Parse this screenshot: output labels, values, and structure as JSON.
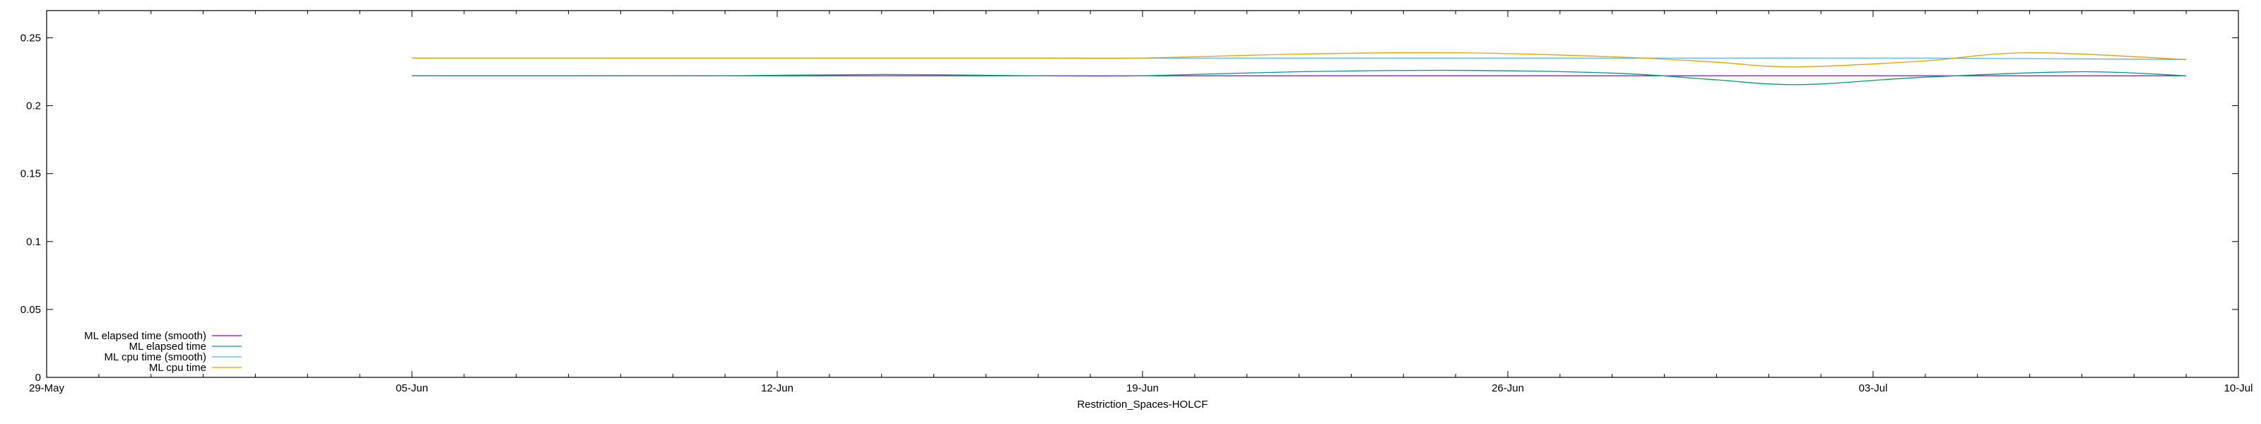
{
  "chart_data": {
    "type": "line",
    "title": "",
    "xlabel": "Restriction_Spaces-HOLCF",
    "ylabel": "",
    "xlim": [
      "2017-05-29",
      "2017-07-10"
    ],
    "ylim": [
      0,
      0.27
    ],
    "grid": false,
    "legend_position": "bottom-left",
    "x_ticks": [
      {
        "date": "2017-05-29",
        "label": "29-May"
      },
      {
        "date": "2017-06-05",
        "label": "05-Jun"
      },
      {
        "date": "2017-06-12",
        "label": "12-Jun"
      },
      {
        "date": "2017-06-19",
        "label": "19-Jun"
      },
      {
        "date": "2017-06-26",
        "label": "26-Jun"
      },
      {
        "date": "2017-07-03",
        "label": "03-Jul"
      },
      {
        "date": "2017-07-10",
        "label": "10-Jul"
      }
    ],
    "y_ticks": [
      {
        "value": 0,
        "label": "0"
      },
      {
        "value": 0.05,
        "label": "0.05"
      },
      {
        "value": 0.1,
        "label": "0.1"
      },
      {
        "value": 0.15,
        "label": "0.15"
      },
      {
        "value": 0.2,
        "label": "0.2"
      },
      {
        "value": 0.25,
        "label": "0.25"
      }
    ],
    "series": [
      {
        "name": "ML elapsed time (smooth)",
        "color": "#9400d3",
        "points": [
          [
            "2017-06-05",
            0.222
          ],
          [
            "2017-06-10",
            0.222
          ],
          [
            "2017-06-15",
            0.222
          ],
          [
            "2017-06-20",
            0.222
          ],
          [
            "2017-06-25",
            0.222
          ],
          [
            "2017-06-30",
            0.222
          ],
          [
            "2017-07-04",
            0.222
          ],
          [
            "2017-07-09",
            0.222
          ]
        ]
      },
      {
        "name": "ML elapsed time",
        "color": "#009e73",
        "points": [
          [
            "2017-06-05",
            0.222
          ],
          [
            "2017-06-08",
            0.222
          ],
          [
            "2017-06-11",
            0.222
          ],
          [
            "2017-06-14",
            0.223
          ],
          [
            "2017-06-17",
            0.222
          ],
          [
            "2017-06-19",
            0.222
          ],
          [
            "2017-06-22",
            0.225
          ],
          [
            "2017-06-25",
            0.226
          ],
          [
            "2017-06-28",
            0.224
          ],
          [
            "2017-06-30",
            0.219
          ],
          [
            "2017-07-01",
            0.216
          ],
          [
            "2017-07-02",
            0.216
          ],
          [
            "2017-07-04",
            0.221
          ],
          [
            "2017-07-07",
            0.225
          ],
          [
            "2017-07-09",
            0.222
          ]
        ]
      },
      {
        "name": "ML cpu time (smooth)",
        "color": "#56b4e9",
        "points": [
          [
            "2017-06-05",
            0.235
          ],
          [
            "2017-06-10",
            0.235
          ],
          [
            "2017-06-15",
            0.235
          ],
          [
            "2017-06-20",
            0.235
          ],
          [
            "2017-06-25",
            0.235
          ],
          [
            "2017-06-30",
            0.235
          ],
          [
            "2017-07-04",
            0.235
          ],
          [
            "2017-07-09",
            0.234
          ]
        ]
      },
      {
        "name": "ML cpu time",
        "color": "#e69f00",
        "points": [
          [
            "2017-06-05",
            0.235
          ],
          [
            "2017-06-08",
            0.235
          ],
          [
            "2017-06-11",
            0.235
          ],
          [
            "2017-06-14",
            0.235
          ],
          [
            "2017-06-17",
            0.235
          ],
          [
            "2017-06-19",
            0.235
          ],
          [
            "2017-06-22",
            0.238
          ],
          [
            "2017-06-25",
            0.239
          ],
          [
            "2017-06-28",
            0.236
          ],
          [
            "2017-06-30",
            0.232
          ],
          [
            "2017-07-01",
            0.229
          ],
          [
            "2017-07-02",
            0.229
          ],
          [
            "2017-07-04",
            0.233
          ],
          [
            "2017-07-06",
            0.239
          ],
          [
            "2017-07-09",
            0.234
          ]
        ]
      }
    ]
  }
}
